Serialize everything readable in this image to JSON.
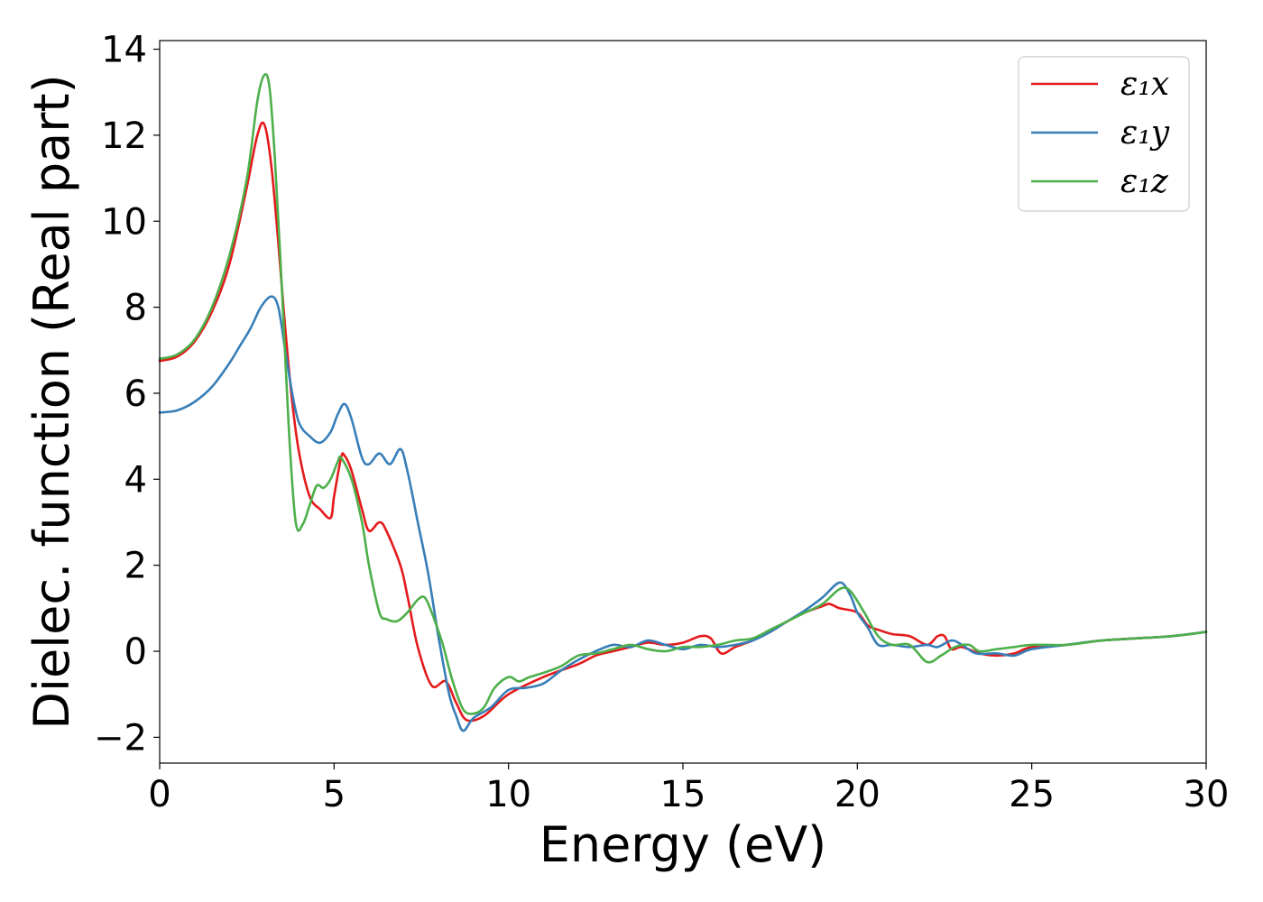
{
  "chart_data": {
    "type": "line",
    "title": "",
    "xlabel": "Energy (eV)",
    "ylabel": "Dielec. function (Real part)",
    "xlim": [
      0,
      30
    ],
    "ylim": [
      -2.6,
      14.2
    ],
    "xticks": [
      0,
      5,
      10,
      15,
      20,
      25,
      30
    ],
    "xtick_labels": [
      "0",
      "5",
      "10",
      "15",
      "20",
      "25",
      "30"
    ],
    "yticks": [
      -2,
      0,
      2,
      4,
      6,
      8,
      10,
      12,
      14
    ],
    "ytick_labels": [
      "−2",
      "0",
      "2",
      "4",
      "6",
      "8",
      "10",
      "12",
      "14"
    ],
    "grid": false,
    "legend_position": "top-right",
    "series": [
      {
        "name": "ε₁x",
        "color": "#e41a1c",
        "points": [
          [
            0,
            6.75
          ],
          [
            0.5,
            6.85
          ],
          [
            1,
            7.2
          ],
          [
            1.5,
            7.9
          ],
          [
            2,
            9.0
          ],
          [
            2.5,
            10.8
          ],
          [
            2.8,
            12.0
          ],
          [
            3.0,
            12.25
          ],
          [
            3.2,
            11.3
          ],
          [
            3.4,
            9.5
          ],
          [
            3.6,
            7.5
          ],
          [
            3.8,
            5.8
          ],
          [
            4.0,
            4.6
          ],
          [
            4.3,
            3.6
          ],
          [
            4.6,
            3.3
          ],
          [
            4.9,
            3.1
          ],
          [
            5.0,
            3.6
          ],
          [
            5.2,
            4.5
          ],
          [
            5.3,
            4.55
          ],
          [
            5.5,
            4.2
          ],
          [
            5.8,
            3.3
          ],
          [
            6.0,
            2.8
          ],
          [
            6.3,
            3.0
          ],
          [
            6.5,
            2.8
          ],
          [
            6.9,
            2.0
          ],
          [
            7.1,
            1.3
          ],
          [
            7.4,
            0.1
          ],
          [
            7.8,
            -0.8
          ],
          [
            8.2,
            -0.7
          ],
          [
            8.5,
            -1.2
          ],
          [
            8.8,
            -1.6
          ],
          [
            9.3,
            -1.5
          ],
          [
            10,
            -1.0
          ],
          [
            11,
            -0.6
          ],
          [
            12,
            -0.3
          ],
          [
            12.5,
            -0.1
          ],
          [
            13,
            0.0
          ],
          [
            13.5,
            0.1
          ],
          [
            14,
            0.2
          ],
          [
            14.5,
            0.15
          ],
          [
            15,
            0.2
          ],
          [
            15.5,
            0.35
          ],
          [
            15.8,
            0.3
          ],
          [
            16.1,
            -0.05
          ],
          [
            16.5,
            0.1
          ],
          [
            17,
            0.25
          ],
          [
            17.5,
            0.45
          ],
          [
            18,
            0.7
          ],
          [
            18.5,
            0.9
          ],
          [
            19,
            1.05
          ],
          [
            19.2,
            1.1
          ],
          [
            19.5,
            1.0
          ],
          [
            20,
            0.9
          ],
          [
            20.3,
            0.6
          ],
          [
            20.6,
            0.5
          ],
          [
            21,
            0.4
          ],
          [
            21.5,
            0.35
          ],
          [
            22,
            0.15
          ],
          [
            22.3,
            0.35
          ],
          [
            22.5,
            0.35
          ],
          [
            22.7,
            0.05
          ],
          [
            23,
            0.1
          ],
          [
            23.5,
            -0.05
          ],
          [
            24,
            -0.1
          ],
          [
            24.5,
            -0.05
          ],
          [
            25,
            0.1
          ],
          [
            26,
            0.15
          ],
          [
            27,
            0.25
          ],
          [
            28,
            0.3
          ],
          [
            29,
            0.35
          ],
          [
            30,
            0.45
          ]
        ]
      },
      {
        "name": "ε₁y",
        "color": "#377eb8",
        "points": [
          [
            0,
            5.55
          ],
          [
            0.5,
            5.6
          ],
          [
            1,
            5.8
          ],
          [
            1.5,
            6.15
          ],
          [
            2,
            6.7
          ],
          [
            2.3,
            7.1
          ],
          [
            2.6,
            7.5
          ],
          [
            2.9,
            8.0
          ],
          [
            3.2,
            8.25
          ],
          [
            3.4,
            8.0
          ],
          [
            3.6,
            7.0
          ],
          [
            3.8,
            6.0
          ],
          [
            4.0,
            5.3
          ],
          [
            4.3,
            5.0
          ],
          [
            4.6,
            4.85
          ],
          [
            4.9,
            5.1
          ],
          [
            5.1,
            5.5
          ],
          [
            5.3,
            5.75
          ],
          [
            5.5,
            5.4
          ],
          [
            5.8,
            4.5
          ],
          [
            6.0,
            4.35
          ],
          [
            6.3,
            4.6
          ],
          [
            6.6,
            4.35
          ],
          [
            6.9,
            4.7
          ],
          [
            7.1,
            4.2
          ],
          [
            7.4,
            3.0
          ],
          [
            7.7,
            1.8
          ],
          [
            8.0,
            0.3
          ],
          [
            8.3,
            -1.0
          ],
          [
            8.5,
            -1.5
          ],
          [
            8.7,
            -1.85
          ],
          [
            9.0,
            -1.55
          ],
          [
            9.5,
            -1.3
          ],
          [
            10,
            -0.9
          ],
          [
            10.5,
            -0.85
          ],
          [
            11,
            -0.75
          ],
          [
            11.5,
            -0.45
          ],
          [
            12,
            -0.2
          ],
          [
            12.5,
            0.0
          ],
          [
            13,
            0.15
          ],
          [
            13.5,
            0.1
          ],
          [
            14,
            0.25
          ],
          [
            14.5,
            0.15
          ],
          [
            15,
            0.05
          ],
          [
            15.5,
            0.15
          ],
          [
            16,
            0.1
          ],
          [
            16.5,
            0.15
          ],
          [
            17,
            0.25
          ],
          [
            17.5,
            0.45
          ],
          [
            18,
            0.7
          ],
          [
            18.5,
            0.95
          ],
          [
            19,
            1.25
          ],
          [
            19.5,
            1.6
          ],
          [
            19.8,
            1.3
          ],
          [
            20,
            0.9
          ],
          [
            20.3,
            0.55
          ],
          [
            20.6,
            0.15
          ],
          [
            21,
            0.15
          ],
          [
            21.5,
            0.1
          ],
          [
            22,
            0.15
          ],
          [
            22.3,
            0.1
          ],
          [
            22.7,
            0.25
          ],
          [
            23,
            0.15
          ],
          [
            23.4,
            -0.05
          ],
          [
            24,
            -0.05
          ],
          [
            24.5,
            -0.1
          ],
          [
            25,
            0.05
          ],
          [
            26,
            0.15
          ],
          [
            27,
            0.25
          ],
          [
            28,
            0.3
          ],
          [
            29,
            0.35
          ],
          [
            30,
            0.45
          ]
        ]
      },
      {
        "name": "ε₁z",
        "color": "#4daf4a",
        "points": [
          [
            0,
            6.8
          ],
          [
            0.5,
            6.9
          ],
          [
            1,
            7.25
          ],
          [
            1.5,
            8.0
          ],
          [
            2,
            9.2
          ],
          [
            2.5,
            11.0
          ],
          [
            2.8,
            12.8
          ],
          [
            3.0,
            13.4
          ],
          [
            3.15,
            13.1
          ],
          [
            3.3,
            11.5
          ],
          [
            3.5,
            8.5
          ],
          [
            3.7,
            5.2
          ],
          [
            3.9,
            3.0
          ],
          [
            4.1,
            2.95
          ],
          [
            4.3,
            3.4
          ],
          [
            4.5,
            3.85
          ],
          [
            4.7,
            3.8
          ],
          [
            4.9,
            4.0
          ],
          [
            5.1,
            4.4
          ],
          [
            5.2,
            4.5
          ],
          [
            5.5,
            4.0
          ],
          [
            5.8,
            3.0
          ],
          [
            6.0,
            2.0
          ],
          [
            6.3,
            0.9
          ],
          [
            6.5,
            0.75
          ],
          [
            6.8,
            0.7
          ],
          [
            7.1,
            0.9
          ],
          [
            7.4,
            1.2
          ],
          [
            7.6,
            1.25
          ],
          [
            7.8,
            0.9
          ],
          [
            8.1,
            0.2
          ],
          [
            8.4,
            -0.7
          ],
          [
            8.7,
            -1.35
          ],
          [
            9.0,
            -1.45
          ],
          [
            9.3,
            -1.3
          ],
          [
            9.6,
            -0.85
          ],
          [
            10,
            -0.6
          ],
          [
            10.3,
            -0.7
          ],
          [
            10.6,
            -0.6
          ],
          [
            11,
            -0.5
          ],
          [
            11.5,
            -0.35
          ],
          [
            12,
            -0.1
          ],
          [
            12.5,
            -0.05
          ],
          [
            13,
            0.05
          ],
          [
            13.5,
            0.15
          ],
          [
            14,
            0.05
          ],
          [
            14.5,
            0.0
          ],
          [
            15,
            0.1
          ],
          [
            15.5,
            0.1
          ],
          [
            16,
            0.15
          ],
          [
            16.5,
            0.25
          ],
          [
            17,
            0.3
          ],
          [
            17.5,
            0.5
          ],
          [
            18,
            0.7
          ],
          [
            18.5,
            0.9
          ],
          [
            19,
            1.1
          ],
          [
            19.5,
            1.45
          ],
          [
            19.8,
            1.4
          ],
          [
            20.2,
            0.9
          ],
          [
            20.6,
            0.35
          ],
          [
            21,
            0.15
          ],
          [
            21.5,
            0.15
          ],
          [
            22,
            -0.25
          ],
          [
            22.4,
            -0.1
          ],
          [
            22.8,
            0.1
          ],
          [
            23.2,
            0.15
          ],
          [
            23.5,
            0.0
          ],
          [
            24,
            0.05
          ],
          [
            24.5,
            0.1
          ],
          [
            25,
            0.15
          ],
          [
            26,
            0.15
          ],
          [
            27,
            0.25
          ],
          [
            28,
            0.3
          ],
          [
            29,
            0.35
          ],
          [
            30,
            0.45
          ]
        ]
      }
    ]
  }
}
